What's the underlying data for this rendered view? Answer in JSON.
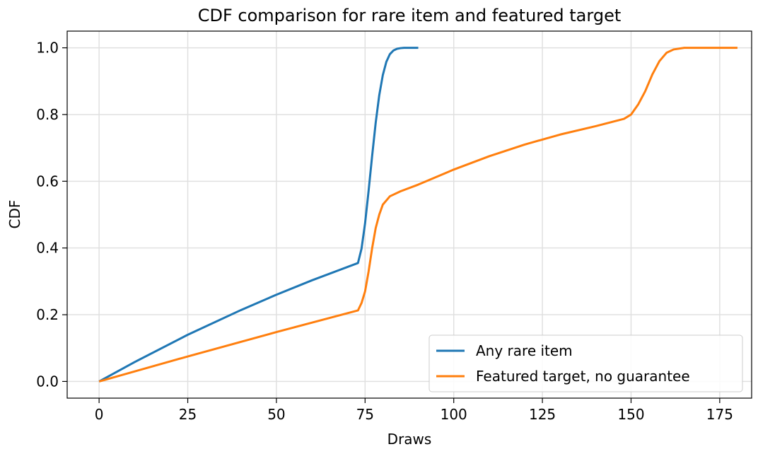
{
  "chart_data": {
    "type": "line",
    "title": "CDF comparison for rare item and featured target",
    "xlabel": "Draws",
    "ylabel": "CDF",
    "xlim": [
      -9,
      184
    ],
    "ylim": [
      -0.05,
      1.05
    ],
    "xticks": [
      0,
      25,
      50,
      75,
      100,
      125,
      150,
      175
    ],
    "yticks": [
      {
        "value": 0,
        "label": "0.0"
      },
      {
        "value": 0.2,
        "label": "0.2"
      },
      {
        "value": 0.4,
        "label": "0.4"
      },
      {
        "value": 0.6,
        "label": "0.6"
      },
      {
        "value": 0.8,
        "label": "0.8"
      },
      {
        "value": 1,
        "label": "1.0"
      }
    ],
    "grid": true,
    "legend": "lower right",
    "series": [
      {
        "name": "Any rare item",
        "color": "#1f77b4",
        "x": [
          0,
          10,
          25,
          40,
          50,
          60,
          73,
          74,
          75,
          76,
          77,
          78,
          79,
          80,
          81,
          82,
          83,
          84,
          85,
          86,
          90
        ],
        "values": [
          0,
          0.058,
          0.14,
          0.214,
          0.26,
          0.303,
          0.355,
          0.398,
          0.474,
          0.572,
          0.677,
          0.776,
          0.858,
          0.918,
          0.958,
          0.981,
          0.992,
          0.997,
          0.999,
          1,
          1
        ]
      },
      {
        "name": "Featured target, no guarantee",
        "color": "#ff7f0e",
        "x": [
          0,
          25,
          50,
          73,
          74,
          75,
          76,
          77,
          78,
          79,
          80,
          82,
          85,
          90,
          100,
          110,
          120,
          130,
          140,
          148,
          150,
          152,
          154,
          156,
          158,
          160,
          162,
          165,
          180
        ],
        "values": [
          0,
          0.075,
          0.148,
          0.213,
          0.235,
          0.27,
          0.33,
          0.4,
          0.46,
          0.5,
          0.53,
          0.555,
          0.57,
          0.59,
          0.635,
          0.675,
          0.71,
          0.74,
          0.765,
          0.787,
          0.8,
          0.83,
          0.87,
          0.92,
          0.96,
          0.985,
          0.995,
          1,
          1
        ]
      }
    ]
  }
}
